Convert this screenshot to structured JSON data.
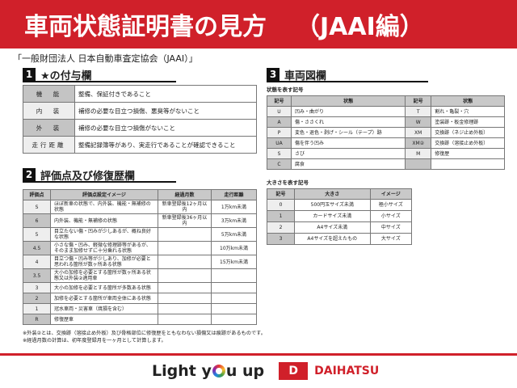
{
  "header": {
    "title": "車両状態証明書の見方",
    "edition": "（JAAI編）"
  },
  "subtitle": "「一般財団法人 日本自動車査定協会（JAAI）」",
  "section1": {
    "number": "1",
    "title": "★の付与欄",
    "rows": [
      {
        "label": "機　能",
        "text": "整備、保証付きであること"
      },
      {
        "label": "内　装",
        "text": "補修の必要な目立つ損傷、悪臭等がないこと"
      },
      {
        "label": "外　装",
        "text": "補修の必要な目立つ損傷がないこと"
      },
      {
        "label": "走行距離",
        "text": "整備記録簿等があり、実走行であることが確認できること"
      }
    ]
  },
  "section2": {
    "number": "2",
    "title": "評価点及び修復歴欄",
    "headers": [
      "評価点",
      "評価点設定イメージ",
      "経過月数",
      "走行距離"
    ],
    "rows": [
      [
        "S",
        "ほぼ新車の状態で、内外装、機能・無補修の状態",
        "新車登録後12ヶ月以内",
        "1万km未満"
      ],
      [
        "6",
        "内外装、機能・無補修の状態",
        "新車登録後36ヶ月以内",
        "3万km未満"
      ],
      [
        "5",
        "目立たない傷・凹みが少しあるが、概ね良好な状態",
        "",
        "5万km未満"
      ],
      [
        "4.5",
        "小さな傷・凹み、軽微な修理跡等があるが、そのまま加修せずに十分乗れる状態",
        "",
        "10万km未満"
      ],
      [
        "4",
        "目立つ傷・凹み等が少しあり、加修が必要と思われる箇所が数ヶ所ある状態",
        "",
        "15万km未満"
      ],
      [
        "3.5",
        "大小の加修を必要とする箇所が数ヶ所ある状態又は外装②適用車",
        "",
        ""
      ],
      [
        "3",
        "大小の加修を必要とする箇所が多数ある状態",
        "",
        ""
      ],
      [
        "2",
        "加修を必要とする箇所が車両全体にある状態",
        "",
        ""
      ],
      [
        "1",
        "冠水車両・災害車（焼損を含む）",
        "",
        ""
      ],
      [
        "R",
        "修復歴車",
        "",
        ""
      ]
    ],
    "notes": [
      "※外装②とは、交換跡（溶接止め外板）及び骨格部位に修復歴をともなわない損傷又は痕跡があるものです。",
      "※経過月数の計算は、初年度登録月を一ヶ月として計算します。"
    ]
  },
  "section3": {
    "number": "3",
    "title": "車両図欄",
    "state_label": "状態を表す記号",
    "state_headers": [
      "記号",
      "状態",
      "記号",
      "状態"
    ],
    "state_rows": [
      [
        "U",
        "凹み・曲がり",
        "T",
        "割れ・亀裂・穴"
      ],
      [
        "A",
        "傷・ささくれ",
        "W",
        "塗装跡・板金修理跡"
      ],
      [
        "P",
        "変色・退色・剥げ・シール（テープ）跡",
        "XM",
        "交換跡（ネジ止め外板）"
      ],
      [
        "UA",
        "傷を伴う凹み",
        "XM②",
        "交換跡（溶接止め外板）"
      ],
      [
        "S",
        "さび",
        "M",
        "修復歴"
      ],
      [
        "C",
        "腐食",
        "",
        ""
      ]
    ],
    "size_label": "大きさを表す記号",
    "size_headers": [
      "記号",
      "大きさ",
      "イメージ"
    ],
    "size_rows": [
      [
        "0",
        "500円玉サイズ未満",
        "極小サイズ"
      ],
      [
        "1",
        "カードサイズ未満",
        "小サイズ"
      ],
      [
        "2",
        "A4サイズ未満",
        "中サイズ"
      ],
      [
        "3",
        "A4サイズを超えたもの",
        "大サイズ"
      ]
    ]
  },
  "footer": {
    "slogan_pre": "Light y",
    "slogan_post": "u up",
    "brand": "DAIHATSU",
    "brand_color": "#d0202a"
  }
}
